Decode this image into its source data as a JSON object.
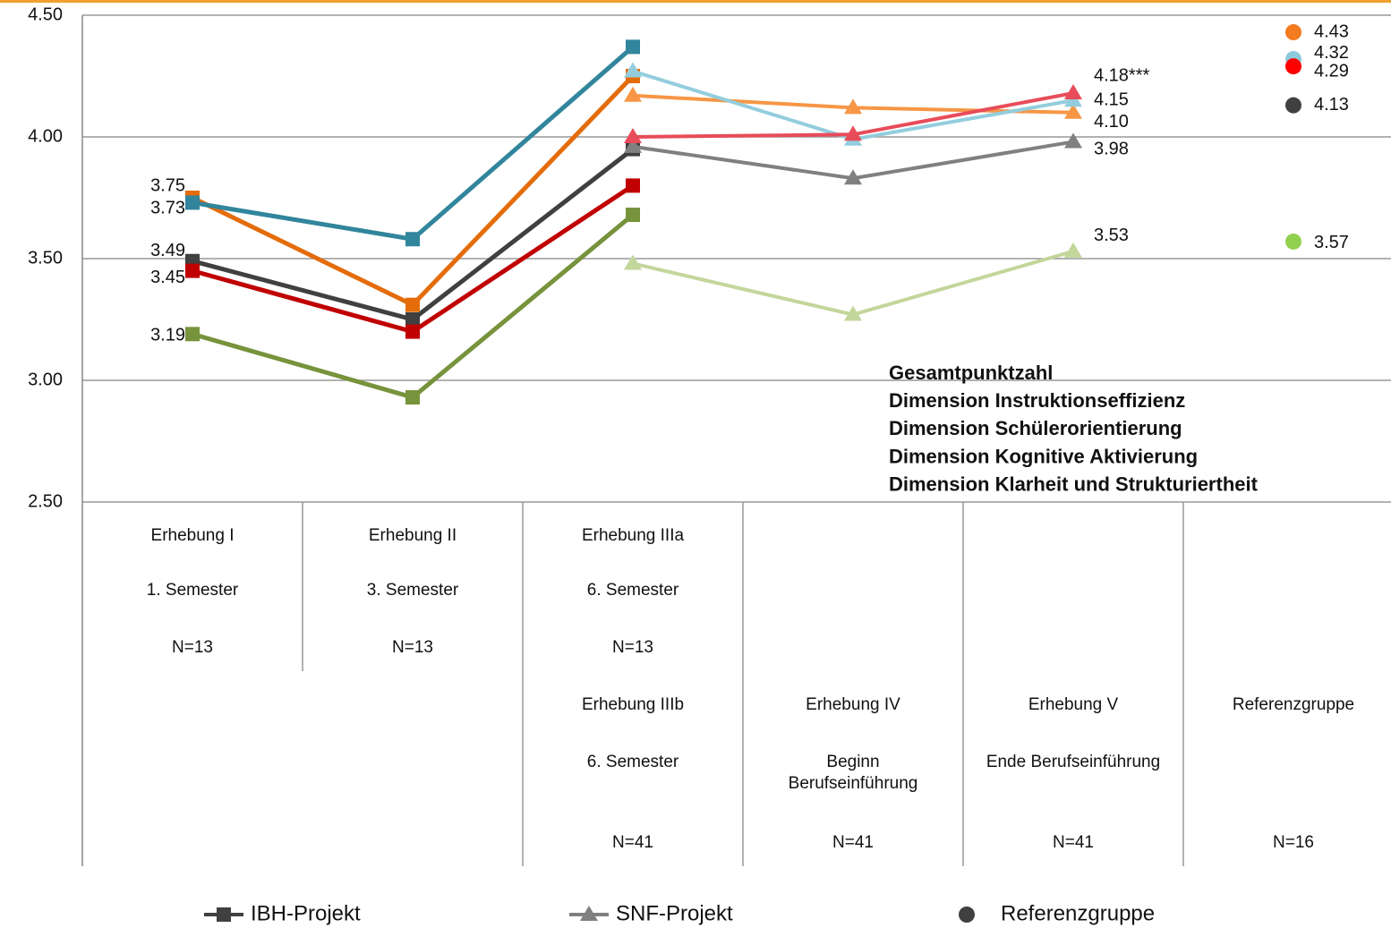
{
  "chart_data": {
    "type": "line",
    "ylim": [
      2.5,
      4.5
    ],
    "yticks": [
      {
        "value": 2.5,
        "label": "2.50"
      },
      {
        "value": 3,
        "label": "3.00"
      },
      {
        "value": 3.5,
        "label": "3.50"
      },
      {
        "value": 4,
        "label": "4.00"
      },
      {
        "value": 4.5,
        "label": "4.50"
      }
    ],
    "grid": true,
    "categories": [
      {
        "top": [
          "Erhebung I",
          "1. Semester",
          "N=13"
        ],
        "bottom": null
      },
      {
        "top": [
          "Erhebung II",
          "3. Semester",
          "N=13"
        ],
        "bottom": null
      },
      {
        "top": [
          "Erhebung IIIa",
          "6. Semester",
          "N=13"
        ],
        "bottom": [
          "Erhebung IIIb",
          "6. Semester",
          "N=41"
        ]
      },
      {
        "top": null,
        "bottom": [
          "Erhebung IV",
          "Beginn\nBerufseinführung",
          "N=41"
        ]
      },
      {
        "top": null,
        "bottom": [
          "Erhebung V",
          "Ende Berufseinführung",
          "N=41"
        ]
      },
      {
        "top": null,
        "bottom": [
          "Referenzgruppe",
          null,
          "N=16"
        ]
      }
    ],
    "dimensions": [
      {
        "name": "Gesamtpunktzahl",
        "color": "#000000"
      },
      {
        "name": "Dimension Instruktionseffizienz",
        "color": "#e46c0a"
      },
      {
        "name": "Dimension Schülerorientierung",
        "color": "#31859c"
      },
      {
        "name": "Dimension Kognitive Aktivierung",
        "color": "#77933c"
      },
      {
        "name": "Dimension Klarheit und Strukturiertheit",
        "color": "#c00000"
      }
    ],
    "groups": [
      {
        "name": "IBH-Projekt",
        "marker": "square",
        "legend_color": "#404040",
        "series": [
          {
            "color": "#404040",
            "values": [
              3.49,
              3.25,
              3.95,
              null,
              null,
              null
            ],
            "value_labels": [
              "3.49",
              null,
              null,
              null,
              null,
              null
            ]
          },
          {
            "color": "#e46c0a",
            "values": [
              3.75,
              3.31,
              4.25,
              null,
              null,
              null
            ],
            "value_labels": [
              "3.75",
              null,
              null,
              null,
              null,
              null
            ]
          },
          {
            "color": "#31859c",
            "values": [
              3.73,
              3.58,
              4.37,
              null,
              null,
              null
            ],
            "value_labels": [
              "3.73",
              null,
              null,
              null,
              null,
              null
            ]
          },
          {
            "color": "#77933c",
            "values": [
              3.19,
              2.93,
              3.68,
              null,
              null,
              null
            ],
            "value_labels": [
              "3.19",
              null,
              null,
              null,
              null,
              null
            ]
          },
          {
            "color": "#c00000",
            "values": [
              3.45,
              3.2,
              3.8,
              null,
              null,
              null
            ],
            "value_labels": [
              "3.45",
              null,
              null,
              null,
              null,
              null
            ]
          }
        ]
      },
      {
        "name": "SNF-Projekt",
        "marker": "triangle",
        "legend_color": "#808080",
        "series": [
          {
            "color": "#808080",
            "values": [
              null,
              null,
              3.96,
              3.83,
              3.98,
              null
            ],
            "value_labels": [
              null,
              null,
              null,
              null,
              "3.98",
              null
            ]
          },
          {
            "color": "#f79646",
            "values": [
              null,
              null,
              4.17,
              4.12,
              4.1,
              null
            ],
            "value_labels": [
              null,
              null,
              null,
              null,
              "4.10",
              null
            ]
          },
          {
            "color": "#93cddd",
            "values": [
              null,
              null,
              4.27,
              3.99,
              4.15,
              null
            ],
            "value_labels": [
              null,
              null,
              null,
              null,
              "4.15",
              null
            ]
          },
          {
            "color": "#c3d69b",
            "values": [
              null,
              null,
              3.48,
              3.27,
              3.53,
              null
            ],
            "value_labels": [
              null,
              null,
              null,
              null,
              "3.53",
              null
            ]
          },
          {
            "color": "#e84c5a",
            "values": [
              null,
              null,
              4.0,
              4.01,
              4.18,
              null
            ],
            "value_labels": [
              null,
              null,
              null,
              null,
              "4.18***",
              null
            ]
          }
        ]
      },
      {
        "name": "Referenzgruppe",
        "marker": "circle",
        "legend_color": "#404040",
        "series": [
          {
            "color": "#404040",
            "values": [
              null,
              null,
              null,
              null,
              null,
              4.13
            ],
            "value_labels": [
              null,
              null,
              null,
              null,
              null,
              "4.13"
            ]
          },
          {
            "color": "#f47b20",
            "values": [
              null,
              null,
              null,
              null,
              null,
              4.43
            ],
            "value_labels": [
              null,
              null,
              null,
              null,
              null,
              "4.43"
            ]
          },
          {
            "color": "#8fc9dc",
            "values": [
              null,
              null,
              null,
              null,
              null,
              4.32
            ],
            "value_labels": [
              null,
              null,
              null,
              null,
              null,
              "4.32"
            ]
          },
          {
            "color": "#92d050",
            "values": [
              null,
              null,
              null,
              null,
              null,
              3.57
            ],
            "value_labels": [
              null,
              null,
              null,
              null,
              null,
              "3.57"
            ]
          },
          {
            "color": "#ff0000",
            "values": [
              null,
              null,
              null,
              null,
              null,
              4.29
            ],
            "value_labels": [
              null,
              null,
              null,
              null,
              null,
              "4.29"
            ]
          }
        ]
      }
    ]
  }
}
